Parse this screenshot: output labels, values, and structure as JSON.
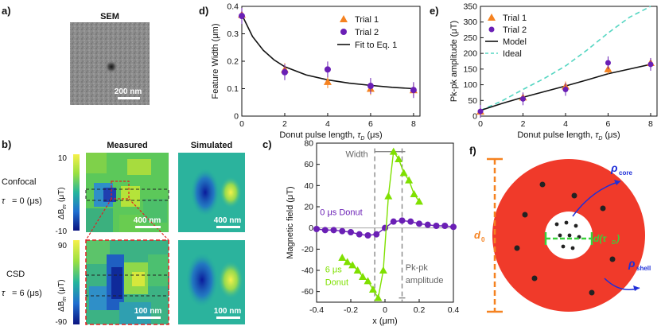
{
  "panel_labels": {
    "a": "a)",
    "b": "b)",
    "c": "c)",
    "d": "d)",
    "e": "e)",
    "f": "f)"
  },
  "sem": {
    "title": "SEM",
    "scalebar": "200 nm"
  },
  "panel_b": {
    "measured": "Measured",
    "simulated": "Simulated",
    "row1_mode": "Confocal",
    "row1_tau": "= 0 (μs)",
    "row2_mode": "CSD",
    "row2_tau": "= 6 (μs)",
    "row1_scalebar": "400 nm",
    "row2_scalebar": "100 nm",
    "cb1_top": "10",
    "cb1_bottom": "-10",
    "cb2_top": "90",
    "cb2_bottom": "-90",
    "cb_label": "ΔB",
    "cb_unit": "(μT)"
  },
  "panel_f": {
    "core": "core",
    "shell": "shell",
    "d0": "d",
    "dtau": "d(τ"
  },
  "colors": {
    "orange": "#f58220",
    "purple": "#6a1fb5",
    "green": "#7fe000",
    "ideal": "#55d6c2",
    "red": "#f03a2a"
  },
  "chart_data": [
    {
      "id": "d",
      "type": "scatter",
      "title": "",
      "xlabel": "Donut pulse length,",
      "xlabel_sym": "τ",
      "xlabel_unit": "(μs)",
      "ylabel": "Feature Width (μm)",
      "xlim": [
        0,
        8.3
      ],
      "ylim": [
        0,
        0.4
      ],
      "xticks": [
        "0",
        "2",
        "4",
        "6",
        "8"
      ],
      "yticks": [
        "0",
        "0.1",
        "0.2",
        "0.3",
        "0.4"
      ],
      "legend": [
        "Trial 1",
        "Trial 2",
        "Fit to Eq. 1"
      ],
      "legend_position": "top-right",
      "series": [
        {
          "name": "Trial 1",
          "x": [
            0,
            2,
            4,
            6,
            8
          ],
          "y": [
            0.37,
            0.17,
            0.125,
            0.1,
            0.095
          ]
        },
        {
          "name": "Trial 2",
          "x": [
            0,
            2,
            4,
            6,
            8
          ],
          "y": [
            0.365,
            0.16,
            0.17,
            0.11,
            0.095
          ]
        },
        {
          "name": "Fit to Eq. 1",
          "x": [
            0,
            0.5,
            1,
            1.5,
            2,
            3,
            4,
            5,
            6,
            7,
            8
          ],
          "y": [
            0.37,
            0.29,
            0.24,
            0.205,
            0.18,
            0.15,
            0.132,
            0.12,
            0.112,
            0.105,
            0.1
          ]
        }
      ]
    },
    {
      "id": "e",
      "type": "scatter",
      "title": "",
      "xlabel": "Donut pulse length,",
      "xlabel_sym": "τ",
      "xlabel_unit": "(μs)",
      "ylabel": "Pk-pk amplitude (μT)",
      "xlim": [
        0,
        8.3
      ],
      "ylim": [
        0,
        350
      ],
      "xticks": [
        "0",
        "2",
        "4",
        "6",
        "8"
      ],
      "yticks": [
        "0",
        "50",
        "100",
        "150",
        "200",
        "250",
        "300",
        "350"
      ],
      "legend": [
        "Trial 1",
        "Trial 2",
        "Model",
        "Ideal"
      ],
      "legend_position": "top-left",
      "series": [
        {
          "name": "Trial 1",
          "x": [
            0,
            2,
            4,
            6,
            8
          ],
          "y": [
            15,
            60,
            95,
            150,
            170
          ]
        },
        {
          "name": "Trial 2",
          "x": [
            0,
            2,
            4,
            6,
            8
          ],
          "y": [
            15,
            55,
            85,
            170,
            165
          ]
        },
        {
          "name": "Model",
          "x": [
            0,
            1,
            2,
            3,
            4,
            5,
            6,
            7,
            8
          ],
          "y": [
            18,
            40,
            60,
            78,
            96,
            115,
            135,
            150,
            165
          ]
        },
        {
          "name": "Ideal",
          "x": [
            0,
            1,
            2,
            3,
            4,
            5,
            6,
            7,
            8
          ],
          "y": [
            18,
            48,
            85,
            120,
            160,
            210,
            265,
            315,
            350
          ]
        }
      ]
    },
    {
      "id": "c",
      "type": "line",
      "title": "",
      "xlabel": "x (μm)",
      "ylabel": "Magnetic field (μT)",
      "xlim": [
        -0.4,
        0.4
      ],
      "ylim": [
        -70,
        80
      ],
      "xticks": [
        "-0.4",
        "-0.2",
        "0",
        "0.2",
        "0.4"
      ],
      "yticks": [
        "-60",
        "-40",
        "-20",
        "0",
        "20",
        "40",
        "60",
        "80"
      ],
      "annotations": [
        "Width",
        "0 μs Donut",
        "6 μs Donut",
        "Pk-pk amplitude"
      ],
      "series": [
        {
          "name": "0 μs Donut",
          "x": [
            -0.4,
            -0.35,
            -0.3,
            -0.25,
            -0.2,
            -0.15,
            -0.1,
            -0.05,
            0,
            0.05,
            0.1,
            0.15,
            0.2,
            0.25,
            0.3,
            0.35,
            0.4
          ],
          "y": [
            -1,
            -2,
            -2,
            -3,
            -4,
            -6,
            -7,
            -6,
            0,
            6,
            7,
            6,
            4,
            3,
            2,
            2,
            1
          ]
        },
        {
          "name": "6 μs Donut",
          "x": [
            -0.25,
            -0.22,
            -0.19,
            -0.16,
            -0.13,
            -0.1,
            -0.07,
            -0.04,
            -0.01,
            0.02,
            0.05,
            0.08,
            0.11,
            0.14,
            0.17,
            0.2
          ],
          "y": [
            -28,
            -32,
            -35,
            -40,
            -46,
            -50,
            -58,
            -66,
            -40,
            30,
            72,
            65,
            52,
            45,
            32,
            25
          ]
        }
      ]
    }
  ]
}
